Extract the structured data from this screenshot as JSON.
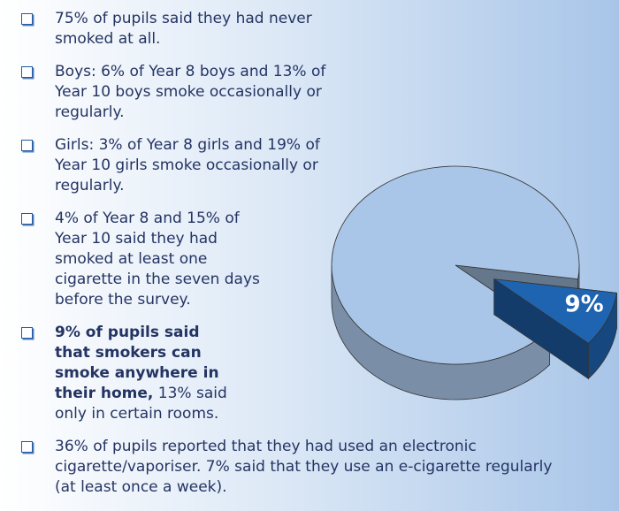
{
  "bullets": [
    {
      "text": "75% of pupils said they had never smoked at all."
    },
    {
      "text": "Boys: 6% of Year 8 boys and 13% of Year 10 boys smoke occasionally or regularly."
    },
    {
      "text": "Girls: 3% of Year 8 girls and 19% of Year 10 girls smoke occasionally or regularly."
    },
    {
      "text": "4% of Year 8 and 15% of Year 10 said they had smoked at least one cigarette in the seven days before the survey."
    },
    {
      "bold": "9% of pupils said that smokers can smoke anywhere in their home,",
      "text": "13% said only in certain rooms."
    },
    {
      "text": "36% of pupils reported that they had used an electronic cigarette/vaporiser. 7% said that they use an e-cigarette regularly (at least once a week)."
    }
  ],
  "chart_data": {
    "type": "pie",
    "values": [
      91,
      9
    ],
    "value_labels": [
      null,
      "9%"
    ],
    "colors": [
      "#a9c6e8",
      "#1f64b0"
    ]
  }
}
